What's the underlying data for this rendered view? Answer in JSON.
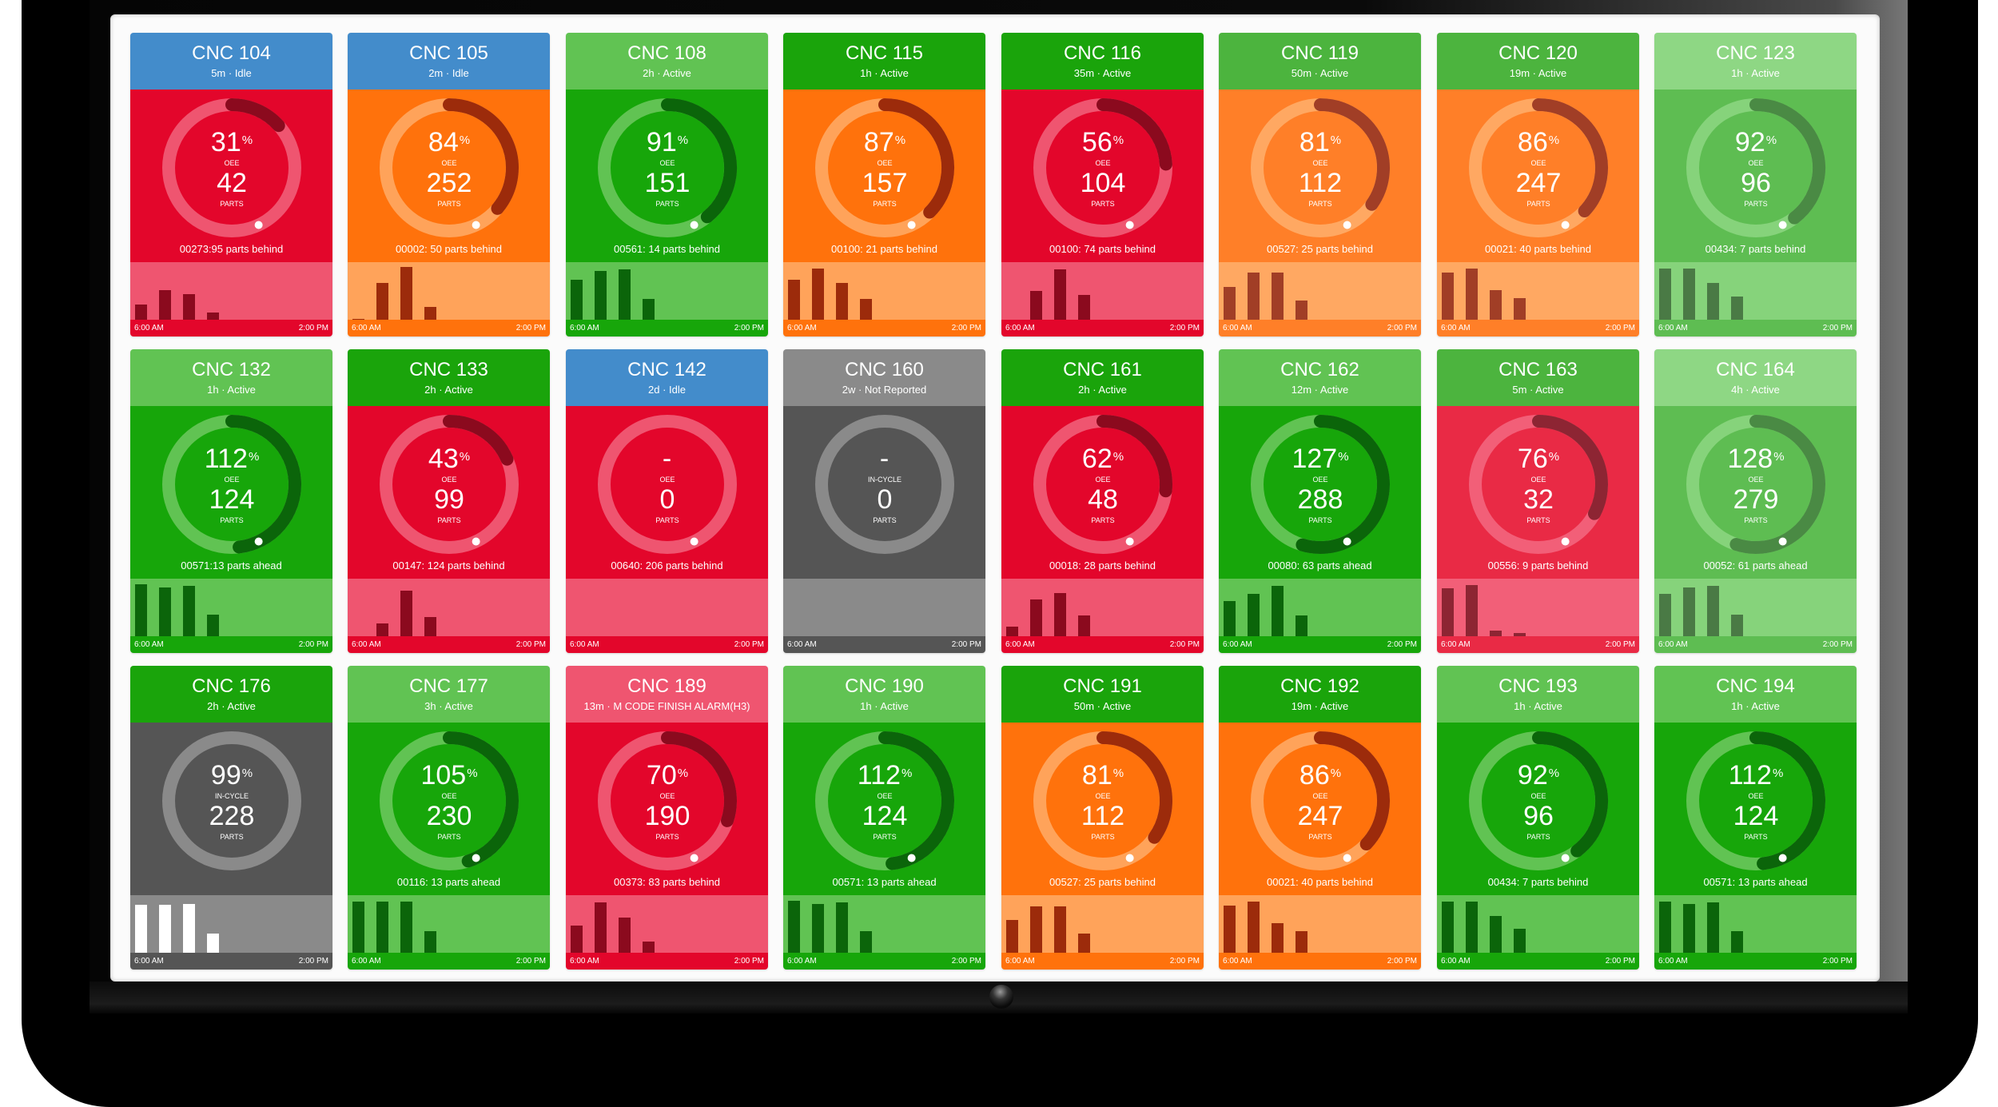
{
  "dashboard": {
    "axis_start": "6:00 AM",
    "axis_end": "2:00 PM",
    "colors": {
      "header_idle": "#438ccb",
      "header_active_dark": "#1aa40b",
      "header_active_mid": "#4cb43e",
      "header_active_light": "#61c353",
      "header_active_pale": "#8ed784",
      "header_not_reported": "#8a8a8a",
      "header_alarm": "#ef5570",
      "red": "#e3062b",
      "orange": "#ff720c",
      "green": "#17a60a",
      "gray": "#555555"
    },
    "machines": [
      {
        "name": "CNC 104",
        "status": "5m · Idle",
        "header": "idle",
        "body": "red",
        "oee": "31",
        "oee_label": "OEE",
        "parts": "42",
        "parts_label": "PARTS",
        "note": "00273:95 parts behind",
        "bars": [
          0.28,
          0.55,
          0.47,
          0.13
        ]
      },
      {
        "name": "CNC 105",
        "status": "2m · Idle",
        "header": "idle",
        "body": "orange",
        "oee": "84",
        "oee_label": "OEE",
        "parts": "252",
        "parts_label": "PARTS",
        "note": "00002: 50 parts behind",
        "bars": [
          0.02,
          0.68,
          0.97,
          0.23
        ]
      },
      {
        "name": "CNC 108",
        "status": "2h · Active",
        "header": "light",
        "body": "green",
        "oee": "91",
        "oee_label": "OEE",
        "parts": "151",
        "parts_label": "PARTS",
        "note": "00561: 14 parts behind",
        "bars": [
          0.73,
          0.9,
          0.93,
          0.38
        ]
      },
      {
        "name": "CNC 115",
        "status": "1h · Active",
        "header": "dark",
        "body": "orange",
        "oee": "87",
        "oee_label": "OEE",
        "parts": "157",
        "parts_label": "PARTS",
        "note": "00100: 21 parts behind",
        "bars": [
          0.73,
          0.94,
          0.68,
          0.38
        ]
      },
      {
        "name": "CNC 116",
        "status": "35m · Active",
        "header": "dark",
        "body": "red",
        "oee": "56",
        "oee_label": "OEE",
        "parts": "104",
        "parts_label": "PARTS",
        "note": "00100: 74 parts behind",
        "bars": [
          0,
          0.53,
          0.93,
          0.46
        ]
      },
      {
        "name": "CNC 119",
        "status": "50m · Active",
        "header": "mid",
        "body": "orange",
        "oee": "81",
        "oee_label": "OEE",
        "parts": "112",
        "parts_label": "PARTS",
        "note": "00527: 25 parts behind",
        "bars": [
          0.6,
          0.87,
          0.87,
          0.35
        ]
      },
      {
        "name": "CNC 120",
        "status": "19m · Active",
        "header": "mid",
        "body": "orange",
        "oee": "86",
        "oee_label": "OEE",
        "parts": "247",
        "parts_label": "PARTS",
        "note": "00021: 40 parts behind",
        "bars": [
          0.87,
          0.94,
          0.55,
          0.4
        ]
      },
      {
        "name": "CNC 123",
        "status": "1h · Active",
        "header": "pale",
        "body": "green",
        "oee": "92",
        "oee_label": "OEE",
        "parts": "96",
        "parts_label": "PARTS",
        "note": "00434: 7 parts behind",
        "bars": [
          0.94,
          0.94,
          0.68,
          0.43
        ]
      },
      {
        "name": "CNC 132",
        "status": "1h · Active",
        "header": "light",
        "body": "green",
        "oee": "112",
        "oee_label": "OEE",
        "parts": "124",
        "parts_label": "PARTS",
        "note": "00571:13 parts ahead",
        "bars": [
          0.95,
          0.89,
          0.92,
          0.4
        ]
      },
      {
        "name": "CNC 133",
        "status": "2h · Active",
        "header": "dark",
        "body": "red",
        "oee": "43",
        "oee_label": "OEE",
        "parts": "99",
        "parts_label": "PARTS",
        "note": "00147: 124 parts behind",
        "bars": [
          0,
          0.23,
          0.84,
          0.36
        ]
      },
      {
        "name": "CNC 142",
        "status": "2d · Idle",
        "header": "idle",
        "body": "red",
        "oee": "-",
        "oee_label": "OEE",
        "parts": "0",
        "parts_label": "PARTS",
        "note": "00640: 206 parts behind",
        "bars": []
      },
      {
        "name": "CNC 160",
        "status": "2w · Not Reported",
        "header": "notreported",
        "body": "gray",
        "oee": "-",
        "oee_label": "IN-CYCLE",
        "parts": "0",
        "parts_label": "PARTS",
        "note": "",
        "bars": []
      },
      {
        "name": "CNC 161",
        "status": "2h · Active",
        "header": "dark",
        "body": "red",
        "oee": "62",
        "oee_label": "OEE",
        "parts": "48",
        "parts_label": "PARTS",
        "note": "00018: 28 parts behind",
        "bars": [
          0.17,
          0.68,
          0.8,
          0.38
        ]
      },
      {
        "name": "CNC 162",
        "status": "12m · Active",
        "header": "light",
        "body": "green",
        "oee": "127",
        "oee_label": "OEE",
        "parts": "288",
        "parts_label": "PARTS",
        "note": "00080: 63 parts ahead",
        "bars": [
          0.65,
          0.78,
          0.93,
          0.38
        ]
      },
      {
        "name": "CNC 163",
        "status": "5m · Active",
        "header": "mid",
        "body": "red",
        "oee": "76",
        "oee_label": "OEE",
        "parts": "32",
        "parts_label": "PARTS",
        "note": "00556: 9 parts behind",
        "bars": [
          0.88,
          0.94,
          0.11,
          0.06
        ]
      },
      {
        "name": "CNC 164",
        "status": "4h · Active",
        "header": "pale",
        "body": "green",
        "oee": "128",
        "oee_label": "OEE",
        "parts": "279",
        "parts_label": "PARTS",
        "note": "00052: 61 parts ahead",
        "bars": [
          0.78,
          0.9,
          0.93,
          0.4
        ]
      },
      {
        "name": "CNC 176",
        "status": "2h · Active",
        "header": "dark",
        "body": "gray",
        "oee": "99",
        "oee_label": "IN-CYCLE",
        "parts": "228",
        "parts_label": "PARTS",
        "note": "",
        "bars": [
          0.88,
          0.88,
          0.9,
          0.36
        ]
      },
      {
        "name": "CNC 177",
        "status": "3h · Active",
        "header": "light",
        "body": "green",
        "oee": "105",
        "oee_label": "OEE",
        "parts": "230",
        "parts_label": "PARTS",
        "note": "00116: 13 parts ahead",
        "bars": [
          0.94,
          0.94,
          0.94,
          0.4
        ]
      },
      {
        "name": "CNC 189",
        "status": "13m · M CODE FINISH ALARM(H3)",
        "header": "alarm",
        "body": "red",
        "oee": "70",
        "oee_label": "OEE",
        "parts": "190",
        "parts_label": "PARTS",
        "note": "00373: 83 parts behind",
        "bars": [
          0.5,
          0.92,
          0.64,
          0.2
        ]
      },
      {
        "name": "CNC 190",
        "status": "1h · Active",
        "header": "light",
        "body": "green",
        "oee": "112",
        "oee_label": "OEE",
        "parts": "124",
        "parts_label": "PARTS",
        "note": "00571: 13 parts ahead",
        "bars": [
          0.95,
          0.89,
          0.92,
          0.4
        ]
      },
      {
        "name": "CNC 191",
        "status": "50m · Active",
        "header": "dark",
        "body": "orange",
        "oee": "81",
        "oee_label": "OEE",
        "parts": "112",
        "parts_label": "PARTS",
        "note": "00527: 25 parts behind",
        "bars": [
          0.6,
          0.85,
          0.85,
          0.35
        ]
      },
      {
        "name": "CNC 192",
        "status": "19m · Active",
        "header": "dark",
        "body": "orange",
        "oee": "86",
        "oee_label": "OEE",
        "parts": "247",
        "parts_label": "PARTS",
        "note": "00021: 40 parts behind",
        "bars": [
          0.87,
          0.94,
          0.55,
          0.4
        ]
      },
      {
        "name": "CNC 193",
        "status": "1h · Active",
        "header": "light",
        "body": "green",
        "oee": "92",
        "oee_label": "OEE",
        "parts": "96",
        "parts_label": "PARTS",
        "note": "00434: 7 parts behind",
        "bars": [
          0.94,
          0.94,
          0.68,
          0.44
        ]
      },
      {
        "name": "CNC 194",
        "status": "1h · Active",
        "header": "light",
        "body": "green",
        "oee": "112",
        "oee_label": "OEE",
        "parts": "124",
        "parts_label": "PARTS",
        "note": "00571: 13 parts ahead",
        "bars": [
          0.94,
          0.89,
          0.92,
          0.39
        ]
      }
    ]
  }
}
